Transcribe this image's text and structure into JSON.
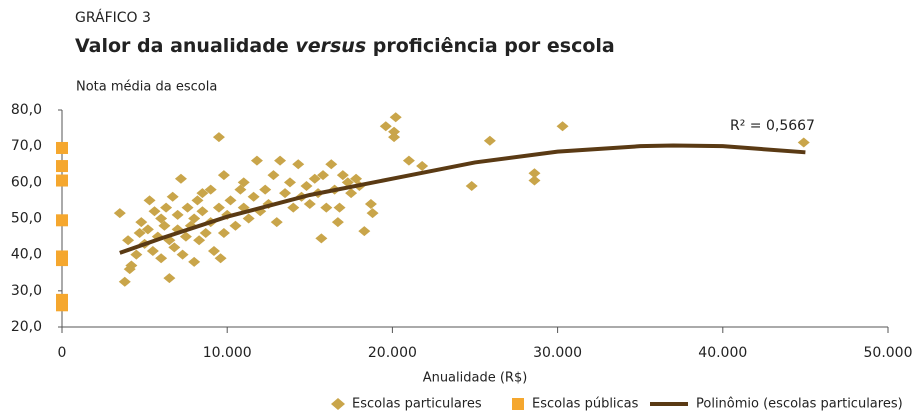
{
  "chart_data": {
    "type": "scatter",
    "supertitle": "GRÁFICO 3",
    "title_parts": [
      "Valor da anualidade",
      "versus",
      "proficiência por escola"
    ],
    "ylabel": "Nota média da escola",
    "xlabel": "Anualidade (R$)",
    "annotation": "R² = 0,5667",
    "xlim": [
      0,
      50000
    ],
    "xticks": [
      {
        "value": 0,
        "label": "0"
      },
      {
        "value": 10000,
        "label": "10.000"
      },
      {
        "value": 20000,
        "label": "20.000"
      },
      {
        "value": 30000,
        "label": "30.000"
      },
      {
        "value": 40000,
        "label": "40.000"
      },
      {
        "value": 50000,
        "label": "50.000"
      }
    ],
    "ylim": [
      20,
      80
    ],
    "yticks": [
      {
        "value": 20,
        "label": "20,0"
      },
      {
        "value": 30,
        "label": "30,0"
      },
      {
        "value": 40,
        "label": "40,0"
      },
      {
        "value": 50,
        "label": "50,0"
      },
      {
        "value": 60,
        "label": "60,0"
      },
      {
        "value": 70,
        "label": "70,0"
      },
      {
        "value": 80,
        "label": "80,0"
      }
    ],
    "grid": false,
    "legend": "bottom-right",
    "series": [
      {
        "name": "Escolas particulares",
        "color": "#c9a54a",
        "marker": "diamond",
        "x": [
          3500,
          3800,
          4000,
          4200,
          4100,
          4500,
          4700,
          4800,
          5000,
          5200,
          5300,
          5500,
          5600,
          5800,
          6000,
          6000,
          6200,
          6300,
          6500,
          6500,
          6700,
          6800,
          7000,
          7000,
          7200,
          7300,
          7500,
          7600,
          7800,
          8000,
          8000,
          8200,
          8300,
          8500,
          8500,
          8700,
          9000,
          9000,
          9200,
          9500,
          9500,
          9600,
          9800,
          9800,
          10000,
          10200,
          10500,
          10800,
          11000,
          11000,
          11300,
          11600,
          11800,
          12000,
          12300,
          12500,
          12800,
          13000,
          13200,
          13500,
          13800,
          14000,
          14300,
          14500,
          14800,
          15000,
          15300,
          15500,
          15700,
          15800,
          16000,
          16300,
          16500,
          16700,
          16800,
          17000,
          17300,
          17500,
          17800,
          18000,
          18300,
          18700,
          18800,
          19600,
          20100,
          20100,
          20200,
          21000,
          21800,
          24800,
          25900,
          28600,
          28600,
          30300,
          44900
        ],
        "values": [
          51.5,
          32.5,
          44,
          37,
          36,
          40,
          46,
          49,
          43,
          47,
          55,
          41,
          52,
          45,
          50,
          39,
          48,
          53,
          33.5,
          44,
          56,
          42,
          47,
          51,
          61,
          40,
          45,
          53,
          48,
          38,
          50,
          55,
          44,
          57,
          52,
          46,
          49,
          58,
          41,
          72.5,
          53,
          39,
          46,
          62,
          51,
          55,
          48,
          58,
          53,
          60,
          50,
          56,
          66,
          52,
          58,
          54,
          62,
          49,
          66,
          57,
          60,
          53,
          65,
          56,
          59,
          54,
          61,
          57,
          44.5,
          62,
          53,
          65,
          58,
          49,
          53,
          62,
          60,
          57,
          61,
          59,
          46.5,
          54,
          51.5,
          75.5,
          74,
          72.5,
          78,
          66,
          64.5,
          59,
          71.5,
          62.5,
          60.5,
          75.5,
          71
        ]
      },
      {
        "name": "Escolas públicas",
        "color": "#f5a72e",
        "marker": "square",
        "x": [
          0,
          0,
          0,
          0,
          0,
          0,
          0,
          0
        ],
        "values": [
          69.5,
          64.5,
          60.5,
          49.5,
          39.5,
          38.5,
          27.5,
          26
        ]
      },
      {
        "name": "Polinômio (escolas particulares)",
        "color": "#5a3a14",
        "marker": "line",
        "x": [
          3500,
          6000,
          10000,
          15000,
          20000,
          25000,
          30000,
          35000,
          37000,
          40000,
          45000
        ],
        "values": [
          40.5,
          44.5,
          50.5,
          56.5,
          61,
          65.5,
          68.5,
          70,
          70.2,
          70,
          68.3
        ]
      }
    ]
  }
}
